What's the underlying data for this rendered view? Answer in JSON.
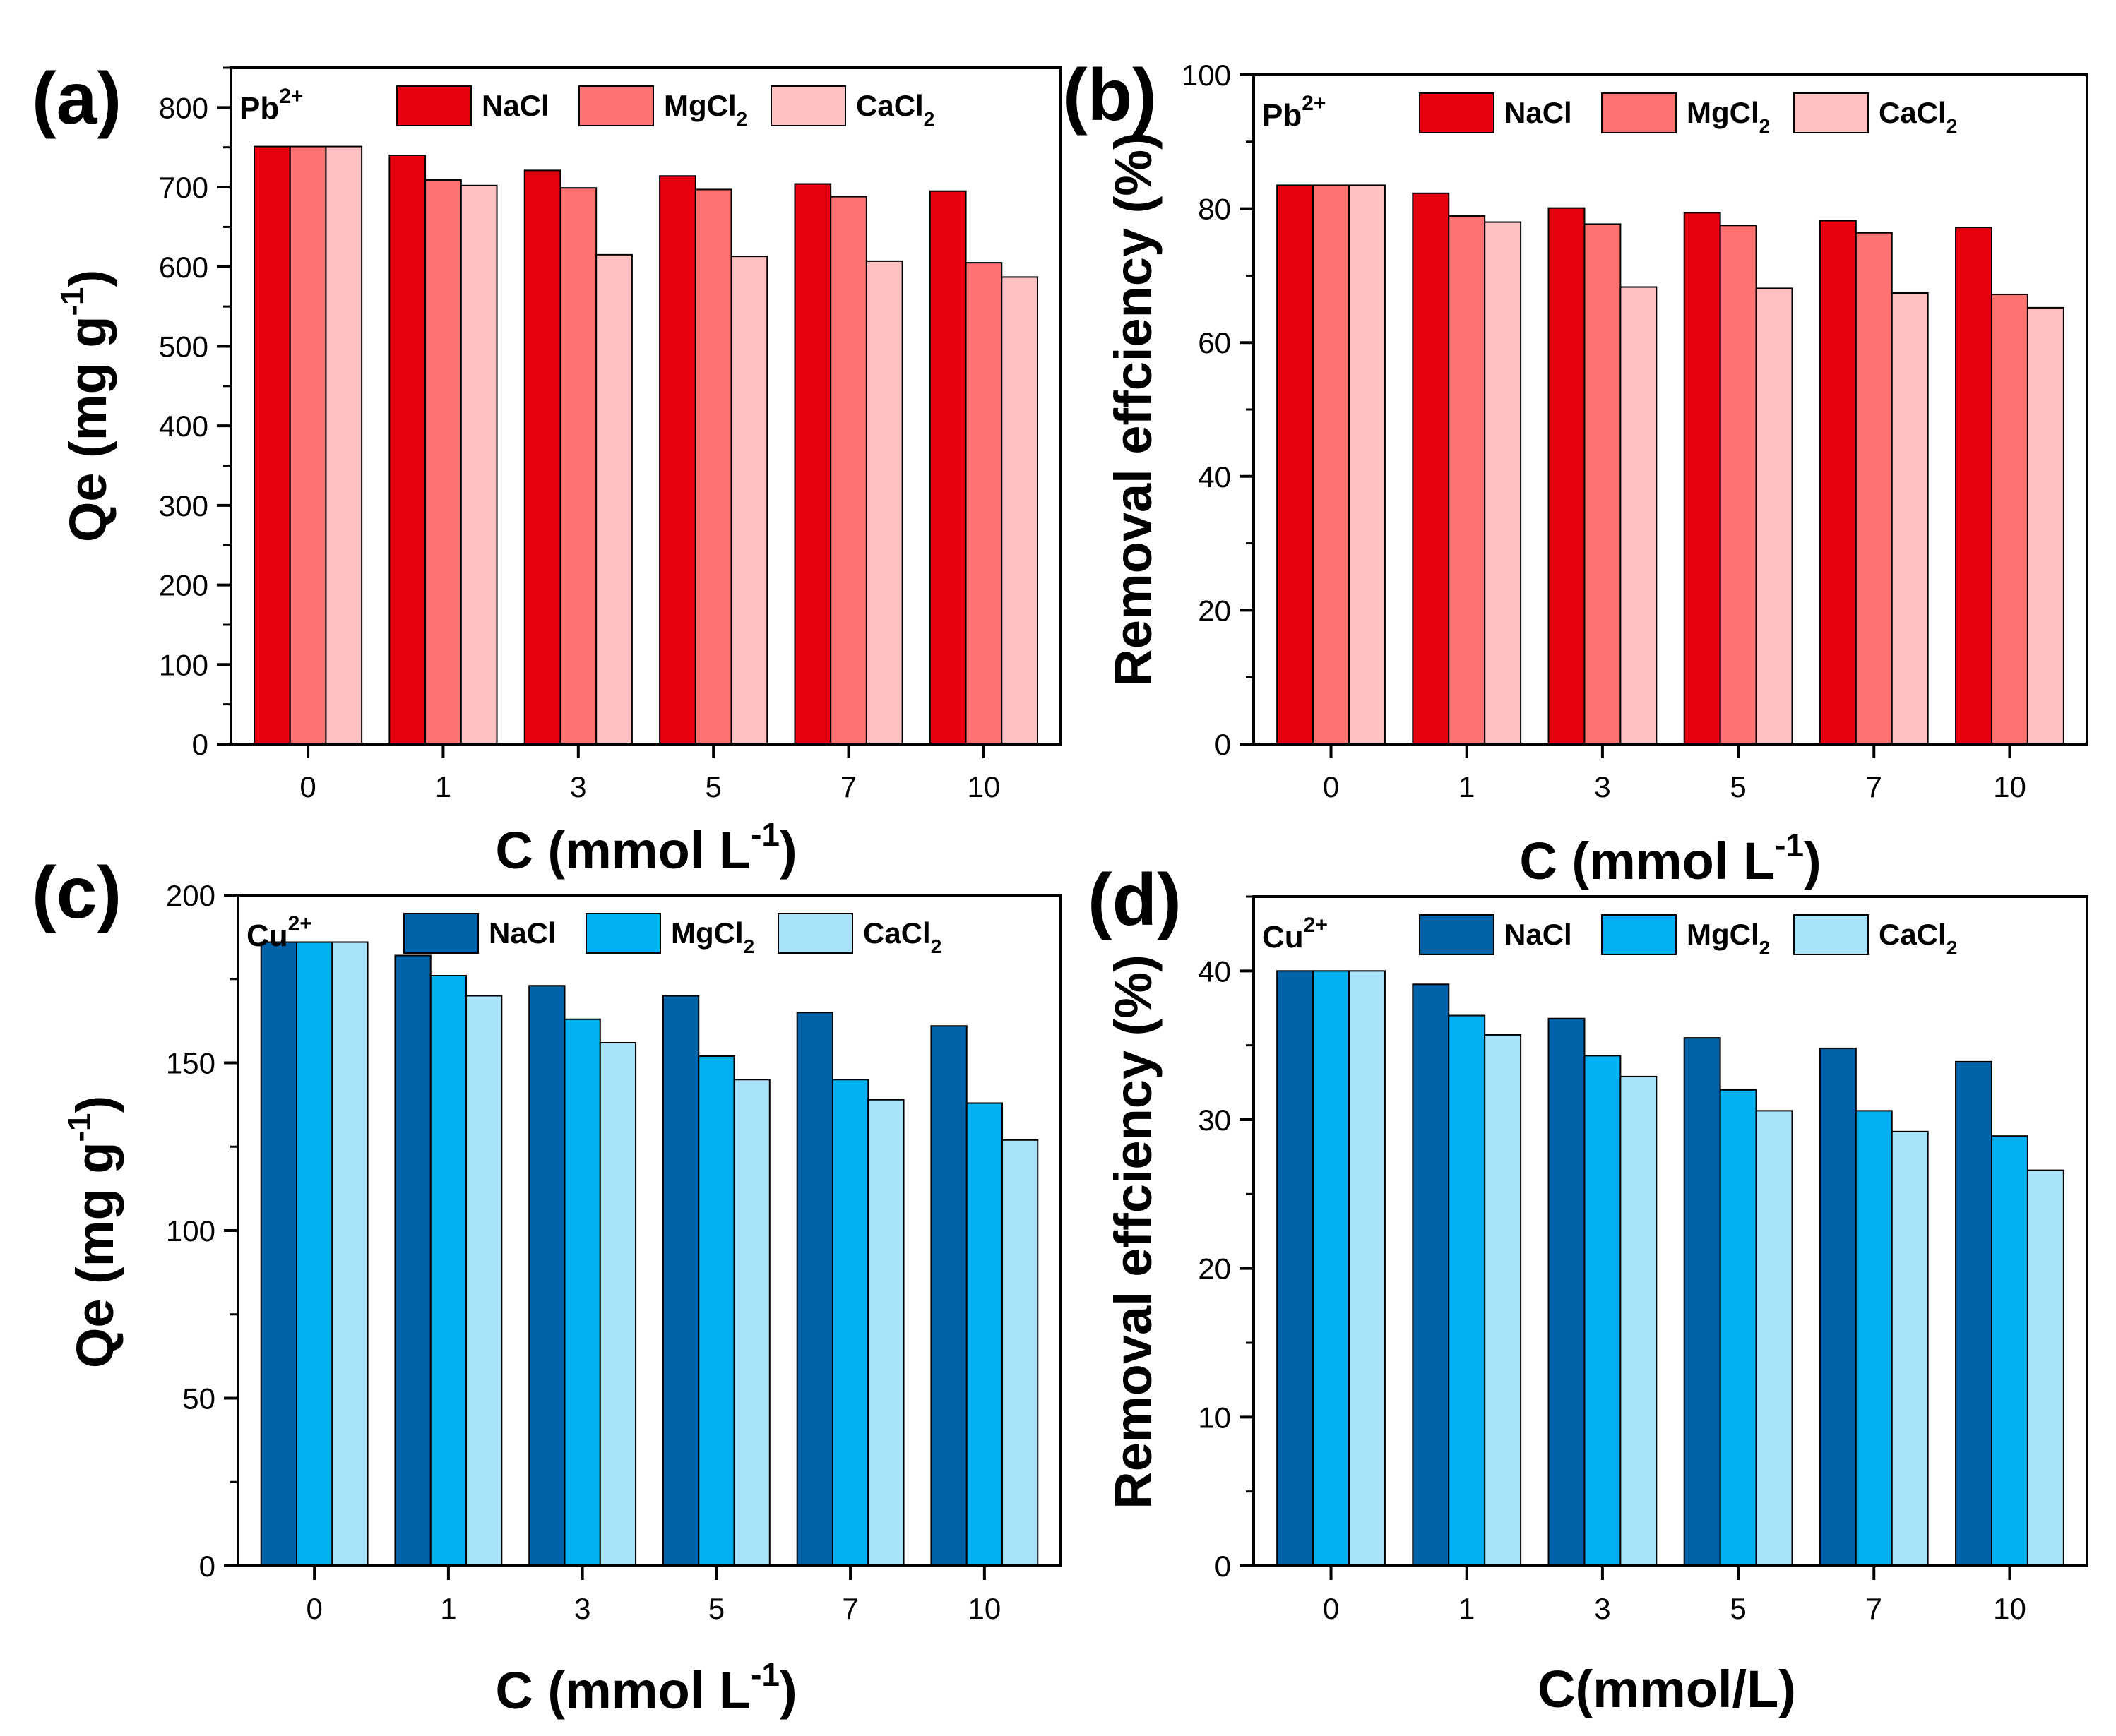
{
  "chart_data": [
    {
      "panel_label": "(a)",
      "type": "bar",
      "ion": {
        "base": "Pb",
        "sup": "2+"
      },
      "categories": [
        "0",
        "1",
        "3",
        "5",
        "7",
        "10"
      ],
      "series": [
        {
          "name": "NaCl",
          "base": "NaCl",
          "sub": "",
          "color": "#e6000f",
          "values": [
            751,
            740,
            721,
            714,
            704,
            695
          ]
        },
        {
          "name": "MgCl2",
          "base": "MgCl",
          "sub": "2",
          "color": "#ff7272",
          "values": [
            751,
            709,
            699,
            697,
            688,
            605
          ]
        },
        {
          "name": "CaCl2",
          "base": "CaCl",
          "sub": "2",
          "color": "#ffc1c1",
          "values": [
            751,
            702,
            615,
            613,
            607,
            587
          ]
        }
      ],
      "ylim": [
        0,
        850
      ],
      "yticks": [
        0,
        100,
        200,
        300,
        400,
        500,
        600,
        700,
        800
      ],
      "xlabel": {
        "base": "C (mmol L",
        "sup": "-1",
        "tail": ")"
      },
      "ylabel": {
        "base": "Qe (mg g",
        "sup": "-1",
        "tail": ")"
      }
    },
    {
      "panel_label": "(b)",
      "type": "bar",
      "ion": {
        "base": "Pb",
        "sup": "2+"
      },
      "categories": [
        "0",
        "1",
        "3",
        "5",
        "7",
        "10"
      ],
      "series": [
        {
          "name": "NaCl",
          "base": "NaCl",
          "sub": "",
          "color": "#e6000f",
          "values": [
            83.5,
            82.3,
            80.1,
            79.4,
            78.2,
            77.2
          ]
        },
        {
          "name": "MgCl2",
          "base": "MgCl",
          "sub": "2",
          "color": "#ff7272",
          "values": [
            83.5,
            78.9,
            77.7,
            77.5,
            76.4,
            67.2
          ]
        },
        {
          "name": "CaCl2",
          "base": "CaCl",
          "sub": "2",
          "color": "#ffc1c1",
          "values": [
            83.5,
            78.0,
            68.3,
            68.1,
            67.4,
            65.2
          ]
        }
      ],
      "ylim": [
        0,
        100
      ],
      "yticks": [
        0,
        20,
        40,
        60,
        80,
        100
      ],
      "xlabel": {
        "base": "C (mmol L",
        "sup": "-1",
        "tail": ")"
      },
      "ylabel": {
        "base": "Removal effciency (%)",
        "sup": "",
        "tail": ""
      }
    },
    {
      "panel_label": "(c)",
      "type": "bar",
      "ion": {
        "base": "Cu",
        "sup": "2+"
      },
      "categories": [
        "0",
        "1",
        "3",
        "5",
        "7",
        "10"
      ],
      "series": [
        {
          "name": "NaCl",
          "base": "NaCl",
          "sub": "",
          "color": "#0062a8",
          "values": [
            186,
            182,
            173,
            170,
            165,
            161
          ]
        },
        {
          "name": "MgCl2",
          "base": "MgCl",
          "sub": "2",
          "color": "#00b0f0",
          "values": [
            186,
            176,
            163,
            152,
            145,
            138
          ]
        },
        {
          "name": "CaCl2",
          "base": "CaCl",
          "sub": "2",
          "color": "#a8e3fb",
          "values": [
            186,
            170,
            156,
            145,
            139,
            127
          ]
        }
      ],
      "ylim": [
        0,
        200
      ],
      "yticks": [
        0,
        50,
        100,
        150,
        200
      ],
      "xlabel": {
        "base": "C (mmol L",
        "sup": "-1",
        "tail": ")"
      },
      "ylabel": {
        "base": "Qe (mg g",
        "sup": "-1",
        "tail": ")"
      }
    },
    {
      "panel_label": "(d)",
      "type": "bar",
      "ion": {
        "base": "Cu",
        "sup": "2+"
      },
      "categories": [
        "0",
        "1",
        "3",
        "5",
        "7",
        "10"
      ],
      "series": [
        {
          "name": "NaCl",
          "base": "NaCl",
          "sub": "",
          "color": "#0062a8",
          "values": [
            40.0,
            39.1,
            36.8,
            35.5,
            34.8,
            33.9
          ]
        },
        {
          "name": "MgCl2",
          "base": "MgCl",
          "sub": "2",
          "color": "#00b0f0",
          "values": [
            40.0,
            37.0,
            34.3,
            32.0,
            30.6,
            28.9
          ]
        },
        {
          "name": "CaCl2",
          "base": "CaCl",
          "sub": "2",
          "color": "#a8e3fb",
          "values": [
            40.0,
            35.7,
            32.9,
            30.6,
            29.2,
            26.6
          ]
        }
      ],
      "ylim": [
        0,
        45
      ],
      "yticks": [
        0,
        10,
        20,
        30,
        40
      ],
      "xlabel": {
        "base": "C(mmol/L)",
        "sup": "",
        "tail": ""
      },
      "ylabel": {
        "base": "Removal effciency (%)",
        "sup": "",
        "tail": ""
      }
    }
  ]
}
